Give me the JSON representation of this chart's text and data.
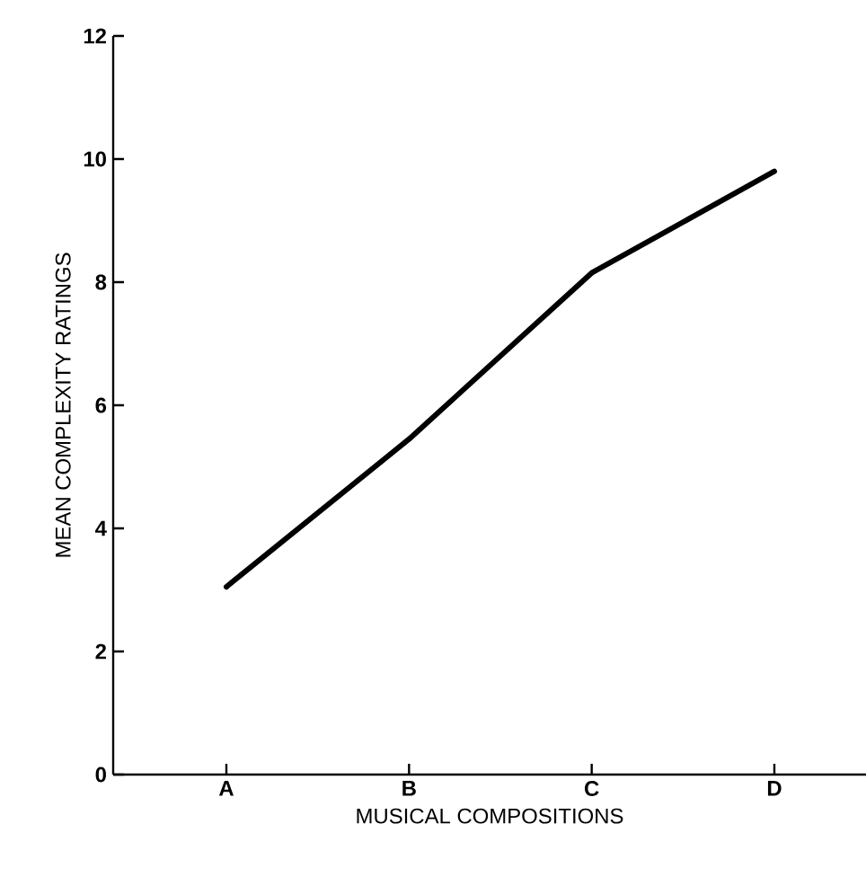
{
  "chart_data": {
    "type": "line",
    "xlabel": "MUSICAL COMPOSITIONS",
    "ylabel": "MEAN COMPLEXITY RATINGS",
    "categories": [
      "A",
      "B",
      "C",
      "D"
    ],
    "values": [
      3.05,
      5.45,
      8.15,
      9.8
    ],
    "color": "#000000",
    "ylim": [
      0,
      12
    ],
    "yticks": [
      0,
      2,
      4,
      6,
      8,
      10,
      12
    ],
    "grid": false,
    "marker": "none",
    "line_style": "solid"
  }
}
